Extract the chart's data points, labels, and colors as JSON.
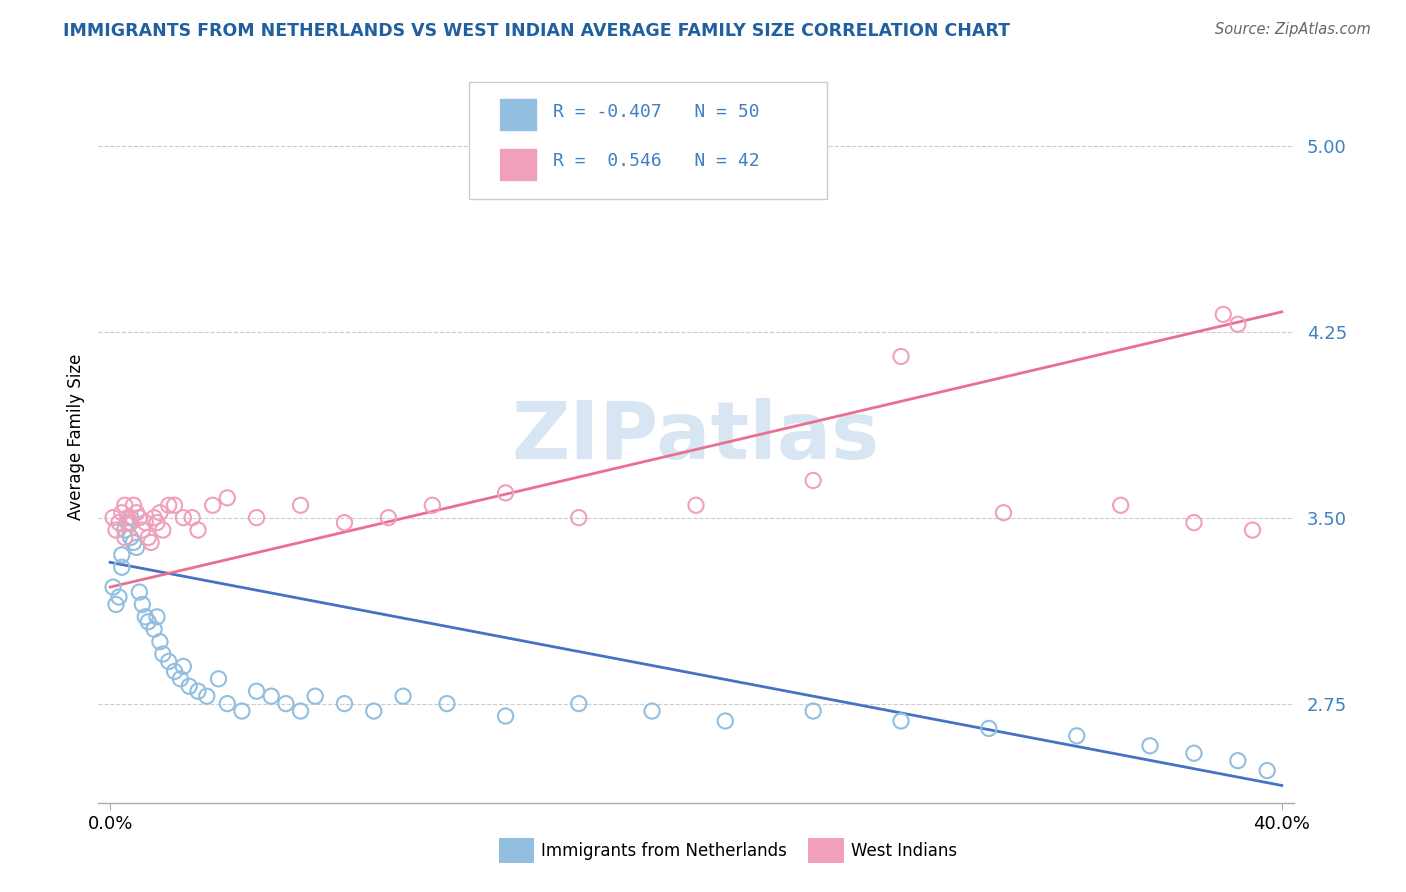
{
  "title": "IMMIGRANTS FROM NETHERLANDS VS WEST INDIAN AVERAGE FAMILY SIZE CORRELATION CHART",
  "source": "Source: ZipAtlas.com",
  "ylabel": "Average Family Size",
  "yticks": [
    2.75,
    3.5,
    4.25,
    5.0
  ],
  "xlim": [
    0.0,
    0.4
  ],
  "ylim": [
    2.35,
    5.3
  ],
  "color_blue": "#92BFDF",
  "color_pink": "#F0A0B8",
  "color_line_blue": "#4472C4",
  "color_line_pink": "#E87090",
  "title_color": "#2060A0",
  "ytick_color": "#4080C0",
  "source_color": "#666666",
  "watermark_color": "#C8DCF0",
  "legend_box_edge": "#CCCCCC",
  "grid_color": "#CCCCCC",
  "nl_x": [
    0.001,
    0.002,
    0.003,
    0.004,
    0.004,
    0.005,
    0.006,
    0.007,
    0.007,
    0.008,
    0.009,
    0.01,
    0.011,
    0.012,
    0.013,
    0.015,
    0.016,
    0.017,
    0.018,
    0.02,
    0.022,
    0.024,
    0.025,
    0.027,
    0.03,
    0.033,
    0.037,
    0.04,
    0.045,
    0.05,
    0.055,
    0.06,
    0.065,
    0.07,
    0.08,
    0.09,
    0.1,
    0.115,
    0.135,
    0.16,
    0.185,
    0.21,
    0.24,
    0.27,
    0.3,
    0.33,
    0.355,
    0.37,
    0.385,
    0.395
  ],
  "nl_y": [
    3.22,
    3.15,
    3.18,
    3.3,
    3.35,
    3.45,
    3.48,
    3.42,
    3.5,
    3.4,
    3.38,
    3.2,
    3.15,
    3.1,
    3.08,
    3.05,
    3.1,
    3.0,
    2.95,
    2.92,
    2.88,
    2.85,
    2.9,
    2.82,
    2.8,
    2.78,
    2.85,
    2.75,
    2.72,
    2.8,
    2.78,
    2.75,
    2.72,
    2.78,
    2.75,
    2.72,
    2.78,
    2.75,
    2.7,
    2.75,
    2.72,
    2.68,
    2.72,
    2.68,
    2.65,
    2.62,
    2.58,
    2.55,
    2.52,
    2.48
  ],
  "wi_x": [
    0.001,
    0.002,
    0.003,
    0.004,
    0.005,
    0.005,
    0.006,
    0.007,
    0.008,
    0.009,
    0.01,
    0.011,
    0.012,
    0.013,
    0.014,
    0.015,
    0.016,
    0.017,
    0.018,
    0.02,
    0.022,
    0.025,
    0.028,
    0.03,
    0.035,
    0.04,
    0.05,
    0.065,
    0.08,
    0.095,
    0.11,
    0.135,
    0.16,
    0.2,
    0.24,
    0.27,
    0.305,
    0.345,
    0.37,
    0.38,
    0.385,
    0.39
  ],
  "wi_y": [
    3.5,
    3.45,
    3.48,
    3.52,
    3.55,
    3.42,
    3.5,
    3.48,
    3.55,
    3.52,
    3.5,
    3.45,
    3.48,
    3.42,
    3.4,
    3.5,
    3.48,
    3.52,
    3.45,
    3.55,
    3.55,
    3.5,
    3.5,
    3.45,
    3.55,
    3.58,
    3.5,
    3.55,
    3.48,
    3.5,
    3.55,
    3.6,
    3.5,
    3.55,
    3.65,
    4.15,
    3.52,
    3.55,
    3.48,
    4.32,
    4.28,
    3.45
  ],
  "nl_line_x0": 0.0,
  "nl_line_x1": 0.4,
  "nl_line_y0": 3.32,
  "nl_line_y1": 2.42,
  "wi_line_x0": 0.0,
  "wi_line_x1": 0.4,
  "wi_line_y0": 3.22,
  "wi_line_y1": 4.33
}
